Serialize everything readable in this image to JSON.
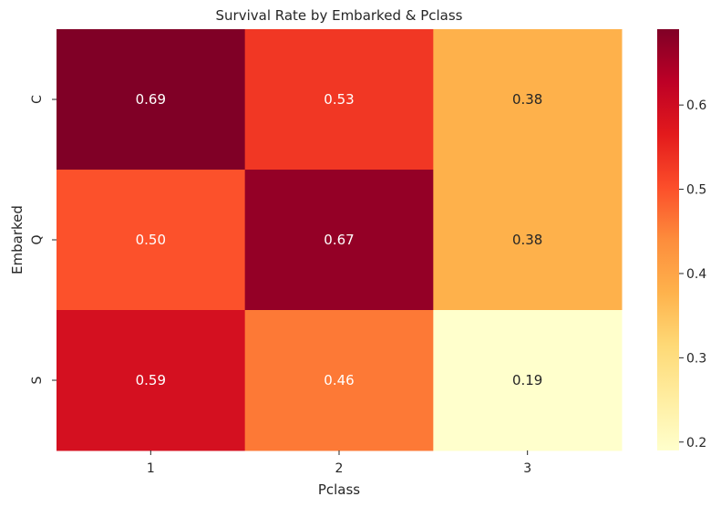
{
  "chart_data": {
    "type": "heatmap",
    "title": "Survival Rate by Embarked & Pclass",
    "xlabel": "Pclass",
    "ylabel": "Embarked",
    "x_categories": [
      "1",
      "2",
      "3"
    ],
    "y_categories": [
      "C",
      "Q",
      "S"
    ],
    "values": [
      [
        0.69,
        0.53,
        0.38
      ],
      [
        0.5,
        0.67,
        0.38
      ],
      [
        0.59,
        0.46,
        0.19
      ]
    ],
    "annotations": [
      [
        "0.69",
        "0.53",
        "0.38"
      ],
      [
        "0.50",
        "0.67",
        "0.38"
      ],
      [
        "0.59",
        "0.46",
        "0.19"
      ]
    ],
    "colormap": "YlOrRd",
    "color_range": [
      0.19,
      0.69
    ],
    "colorbar_ticks": [
      "0.2",
      "0.3",
      "0.4",
      "0.5",
      "0.6"
    ],
    "colorbar_tick_values": [
      0.2,
      0.3,
      0.4,
      0.5,
      0.6
    ],
    "grid": false
  }
}
